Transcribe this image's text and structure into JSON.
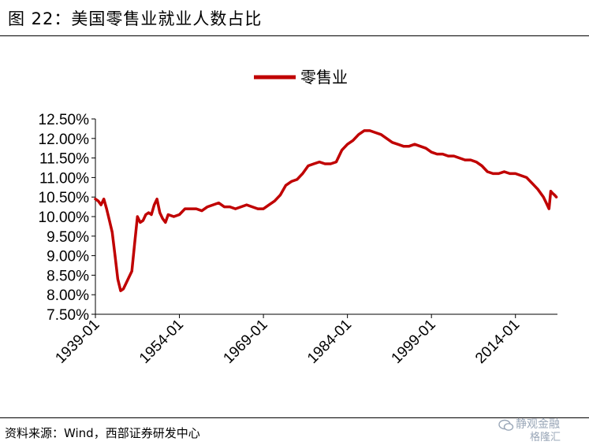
{
  "figure_title": "图 22：美国零售业就业人数占比",
  "source_note": "资料来源：Wind，西部证券研发中心",
  "watermark": {
    "line1": "静观金融",
    "line2": "格隆汇"
  },
  "colors": {
    "series": "#c00000",
    "axis": "#000000"
  },
  "chart_data": {
    "type": "line",
    "title": "",
    "xlabel": "",
    "ylabel": "",
    "legend_position": "top-center",
    "grid": false,
    "ylim": [
      7.5,
      12.5
    ],
    "yticks": [
      "12.50%",
      "12.00%",
      "11.50%",
      "11.00%",
      "10.50%",
      "10.00%",
      "9.50%",
      "9.00%",
      "8.50%",
      "8.00%",
      "7.50%"
    ],
    "yticks_values": [
      12.5,
      12.0,
      11.5,
      11.0,
      10.5,
      10.0,
      9.5,
      9.0,
      8.5,
      8.0,
      7.5
    ],
    "xlim": [
      1939.0,
      2021.5
    ],
    "xticks": [
      "1939-01",
      "1954-01",
      "1969-01",
      "1984-01",
      "1999-01",
      "2014-01"
    ],
    "xticks_values": [
      1939,
      1954,
      1969,
      1984,
      1999,
      2014
    ],
    "series": [
      {
        "name": "零售业",
        "x": [
          1939.0,
          1939.5,
          1940.0,
          1940.5,
          1941.0,
          1941.5,
          1942.0,
          1942.5,
          1943.0,
          1943.5,
          1944.0,
          1944.5,
          1945.0,
          1945.5,
          1946.0,
          1946.5,
          1947.0,
          1947.5,
          1948.0,
          1948.5,
          1949.0,
          1949.5,
          1950.0,
          1950.5,
          1951.0,
          1951.5,
          1952.0,
          1953.0,
          1954.0,
          1955.0,
          1956.0,
          1957.0,
          1958.0,
          1959.0,
          1960.0,
          1961.0,
          1962.0,
          1963.0,
          1964.0,
          1965.0,
          1966.0,
          1967.0,
          1968.0,
          1969.0,
          1970.0,
          1971.0,
          1972.0,
          1973.0,
          1974.0,
          1975.0,
          1976.0,
          1977.0,
          1978.0,
          1979.0,
          1980.0,
          1981.0,
          1982.0,
          1983.0,
          1984.0,
          1985.0,
          1986.0,
          1987.0,
          1988.0,
          1989.0,
          1990.0,
          1991.0,
          1992.0,
          1993.0,
          1994.0,
          1995.0,
          1996.0,
          1997.0,
          1998.0,
          1999.0,
          2000.0,
          2001.0,
          2002.0,
          2003.0,
          2004.0,
          2005.0,
          2006.0,
          2007.0,
          2008.0,
          2009.0,
          2010.0,
          2011.0,
          2012.0,
          2013.0,
          2014.0,
          2015.0,
          2016.0,
          2017.0,
          2018.0,
          2019.0,
          2019.5,
          2020.0,
          2020.3,
          2020.6,
          2021.0,
          2021.3
        ],
        "y": [
          10.45,
          10.4,
          10.3,
          10.45,
          10.2,
          9.9,
          9.6,
          9.0,
          8.4,
          8.1,
          8.15,
          8.3,
          8.45,
          8.6,
          9.3,
          10.0,
          9.85,
          9.9,
          10.05,
          10.1,
          10.05,
          10.3,
          10.45,
          10.1,
          9.95,
          9.85,
          10.05,
          10.0,
          10.05,
          10.2,
          10.2,
          10.2,
          10.15,
          10.25,
          10.3,
          10.35,
          10.25,
          10.25,
          10.2,
          10.25,
          10.3,
          10.25,
          10.2,
          10.2,
          10.3,
          10.4,
          10.55,
          10.8,
          10.9,
          10.95,
          11.1,
          11.3,
          11.35,
          11.4,
          11.35,
          11.35,
          11.4,
          11.7,
          11.85,
          11.95,
          12.1,
          12.2,
          12.2,
          12.15,
          12.1,
          12.0,
          11.9,
          11.85,
          11.8,
          11.8,
          11.85,
          11.8,
          11.75,
          11.65,
          11.6,
          11.6,
          11.55,
          11.55,
          11.5,
          11.45,
          11.45,
          11.4,
          11.3,
          11.15,
          11.1,
          11.1,
          11.15,
          11.1,
          11.1,
          11.05,
          11.0,
          10.85,
          10.7,
          10.5,
          10.35,
          10.2,
          10.65,
          10.6,
          10.55,
          10.5
        ]
      }
    ]
  }
}
